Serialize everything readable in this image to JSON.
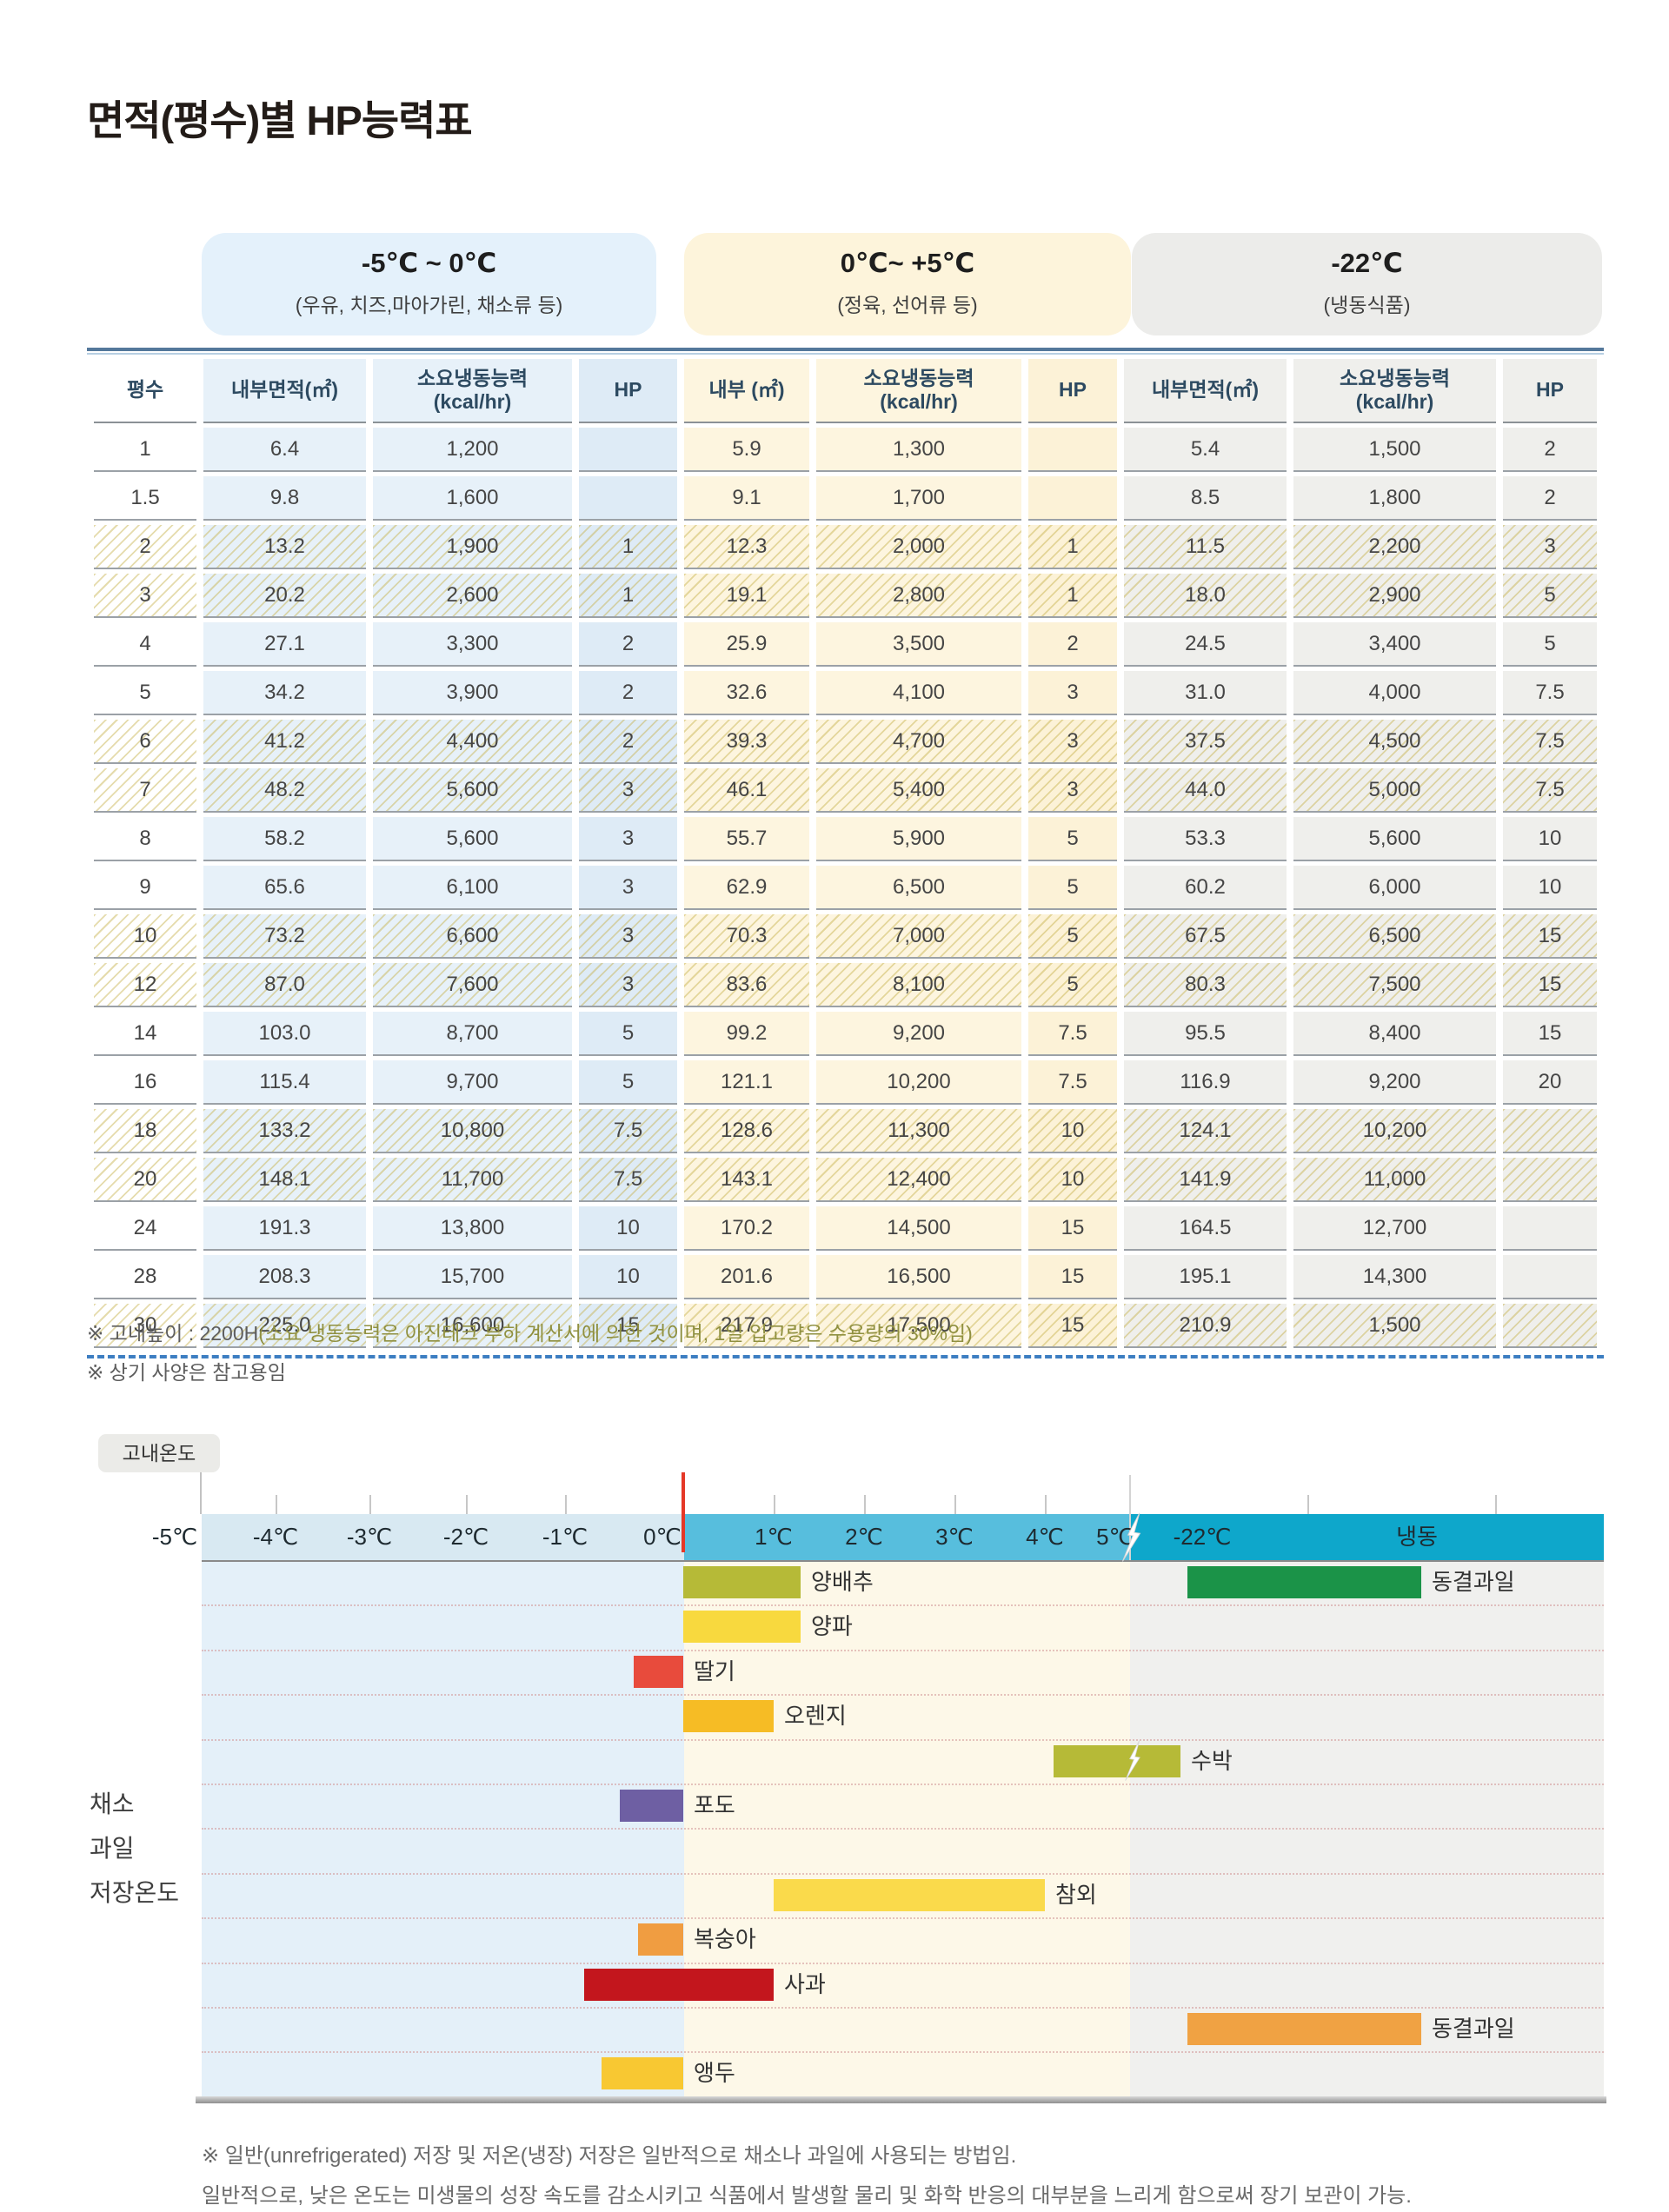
{
  "title": "면적(평수)별 HP능력표",
  "pills": [
    {
      "title": "-5℃ ~ 0℃",
      "subtitle": "(우유, 치즈,마아가린, 채소류 등)",
      "bg": "#e4f1fb"
    },
    {
      "title": "0℃~ +5℃",
      "subtitle": "(정육, 선어류 등)",
      "bg": "#fdf4db"
    },
    {
      "title": "-22℃",
      "subtitle": "(냉동식품)",
      "bg": "#ececea"
    }
  ],
  "table": {
    "headers": [
      "평수",
      "내부면적(㎡)",
      "소요냉동능력\n(kcal/hr)",
      "HP",
      "내부 (㎡)",
      "소요냉동능력\n(kcal/hr)",
      "HP",
      "내부면적(㎡)",
      "소요냉동능력\n(kcal/hr)",
      "HP"
    ],
    "rows": [
      {
        "hatched": false,
        "cells": [
          "1",
          "6.4",
          "1,200",
          "",
          "5.9",
          "1,300",
          "",
          "5.4",
          "1,500",
          "2"
        ]
      },
      {
        "hatched": false,
        "cells": [
          "1.5",
          "9.8",
          "1,600",
          "",
          "9.1",
          "1,700",
          "",
          "8.5",
          "1,800",
          "2"
        ]
      },
      {
        "hatched": true,
        "cells": [
          "2",
          "13.2",
          "1,900",
          "1",
          "12.3",
          "2,000",
          "1",
          "11.5",
          "2,200",
          "3"
        ]
      },
      {
        "hatched": true,
        "cells": [
          "3",
          "20.2",
          "2,600",
          "1",
          "19.1",
          "2,800",
          "1",
          "18.0",
          "2,900",
          "5"
        ]
      },
      {
        "hatched": false,
        "cells": [
          "4",
          "27.1",
          "3,300",
          "2",
          "25.9",
          "3,500",
          "2",
          "24.5",
          "3,400",
          "5"
        ]
      },
      {
        "hatched": false,
        "cells": [
          "5",
          "34.2",
          "3,900",
          "2",
          "32.6",
          "4,100",
          "3",
          "31.0",
          "4,000",
          "7.5"
        ]
      },
      {
        "hatched": true,
        "cells": [
          "6",
          "41.2",
          "4,400",
          "2",
          "39.3",
          "4,700",
          "3",
          "37.5",
          "4,500",
          "7.5"
        ]
      },
      {
        "hatched": true,
        "cells": [
          "7",
          "48.2",
          "5,600",
          "3",
          "46.1",
          "5,400",
          "3",
          "44.0",
          "5,000",
          "7.5"
        ]
      },
      {
        "hatched": false,
        "cells": [
          "8",
          "58.2",
          "5,600",
          "3",
          "55.7",
          "5,900",
          "5",
          "53.3",
          "5,600",
          "10"
        ]
      },
      {
        "hatched": false,
        "cells": [
          "9",
          "65.6",
          "6,100",
          "3",
          "62.9",
          "6,500",
          "5",
          "60.2",
          "6,000",
          "10"
        ]
      },
      {
        "hatched": true,
        "cells": [
          "10",
          "73.2",
          "6,600",
          "3",
          "70.3",
          "7,000",
          "5",
          "67.5",
          "6,500",
          "15"
        ]
      },
      {
        "hatched": true,
        "cells": [
          "12",
          "87.0",
          "7,600",
          "3",
          "83.6",
          "8,100",
          "5",
          "80.3",
          "7,500",
          "15"
        ]
      },
      {
        "hatched": false,
        "cells": [
          "14",
          "103.0",
          "8,700",
          "5",
          "99.2",
          "9,200",
          "7.5",
          "95.5",
          "8,400",
          "15"
        ]
      },
      {
        "hatched": false,
        "cells": [
          "16",
          "115.4",
          "9,700",
          "5",
          "121.1",
          "10,200",
          "7.5",
          "116.9",
          "9,200",
          "20"
        ]
      },
      {
        "hatched": true,
        "cells": [
          "18",
          "133.2",
          "10,800",
          "7.5",
          "128.6",
          "11,300",
          "10",
          "124.1",
          "10,200",
          ""
        ]
      },
      {
        "hatched": true,
        "cells": [
          "20",
          "148.1",
          "11,700",
          "7.5",
          "143.1",
          "12,400",
          "10",
          "141.9",
          "11,000",
          ""
        ]
      },
      {
        "hatched": false,
        "cells": [
          "24",
          "191.3",
          "13,800",
          "10",
          "170.2",
          "14,500",
          "15",
          "164.5",
          "12,700",
          ""
        ]
      },
      {
        "hatched": false,
        "cells": [
          "28",
          "208.3",
          "15,700",
          "10",
          "201.6",
          "16,500",
          "15",
          "195.1",
          "14,300",
          ""
        ]
      },
      {
        "hatched": true,
        "cells": [
          "30",
          "225.0",
          "16,600",
          "15",
          "217.9",
          "17,500",
          "15",
          "210.9",
          "1,500",
          ""
        ]
      }
    ]
  },
  "table_notes": {
    "note1_prefix": "※ 고내높이 : 2200H",
    "note1_paren": "(소요 냉동능력은 아진테크 부하 계산서에 의한 것이며, 1일 입고량은 수용량의 30%임)",
    "note2": "※ 상기 사양은 참고용임"
  },
  "chart": {
    "tab_label": "고내온도",
    "left_label_lines": [
      "채소",
      "과일",
      "저장온도"
    ],
    "notes": [
      "※ 일반(unrefrigerated) 저장 및 저온(냉장) 저장은 일반적으로 채소나 과일에 사용되는 방법임.",
      "일반적으로, 낮은 온도는 미생물의 성장 속도를 감소시키고 식품에서 발생할 물리 및 화학 반응의 대부분을 느리게 함으로써 장기 보관이 가능."
    ]
  },
  "chart_data": {
    "type": "bar",
    "title": "채소 과일 저장온도",
    "axis_tab_label": "고내온도",
    "x_tick_labels": [
      "-5℃",
      "-4℃",
      "-3℃",
      "-2℃",
      "-1℃",
      "0℃",
      "1℃",
      "2℃",
      "3℃",
      "4℃",
      "5℃",
      "-22℃",
      "냉동"
    ],
    "x_range_celsius": [
      -5,
      5
    ],
    "frozen_zone_labels": [
      "-22℃",
      "냉동"
    ],
    "axis_segment_colors": [
      "#d8e9f2",
      "#57bedd",
      "#0ea7cb"
    ],
    "region_colors": [
      "#e4f0f9",
      "#fdf8e8",
      "#f0f0ee"
    ],
    "zero_line_color": "#e53827",
    "items": [
      {
        "label": "양배추",
        "start_c": 0,
        "end_c": 1.3,
        "color": "#b6ba37",
        "row": 0
      },
      {
        "label": "동결과일",
        "zone": "frozen",
        "color": "#1b9348",
        "row": 0
      },
      {
        "label": "양파",
        "start_c": 0,
        "end_c": 1.3,
        "color": "#f8d93e",
        "row": 1
      },
      {
        "label": "딸기",
        "start_c": -0.55,
        "end_c": 0,
        "color": "#e84b3c",
        "row": 2
      },
      {
        "label": "오렌지",
        "start_c": 0,
        "end_c": 1.0,
        "color": "#f6bc25",
        "row": 3
      },
      {
        "label": "수박",
        "start_c": 4.1,
        "end_c": 5.5,
        "color": "#b6ba37",
        "row": 4,
        "lightning": true
      },
      {
        "label": "포도",
        "start_c": -0.7,
        "end_c": 0,
        "color": "#6e5fa3",
        "row": 5
      },
      {
        "label": "참외",
        "start_c": 1.0,
        "end_c": 4.0,
        "color": "#fada4b",
        "row": 7
      },
      {
        "label": "복숭아",
        "start_c": -0.5,
        "end_c": 0,
        "color": "#f09d41",
        "row": 8
      },
      {
        "label": "사과",
        "start_c": -1.1,
        "end_c": 1.0,
        "color": "#c3161d",
        "row": 9
      },
      {
        "label": "동결과일",
        "zone": "frozen",
        "color": "#f0a243",
        "row": 10
      },
      {
        "label": "앵두",
        "start_c": -0.9,
        "end_c": 0,
        "color": "#f8c832",
        "row": 11
      }
    ]
  }
}
